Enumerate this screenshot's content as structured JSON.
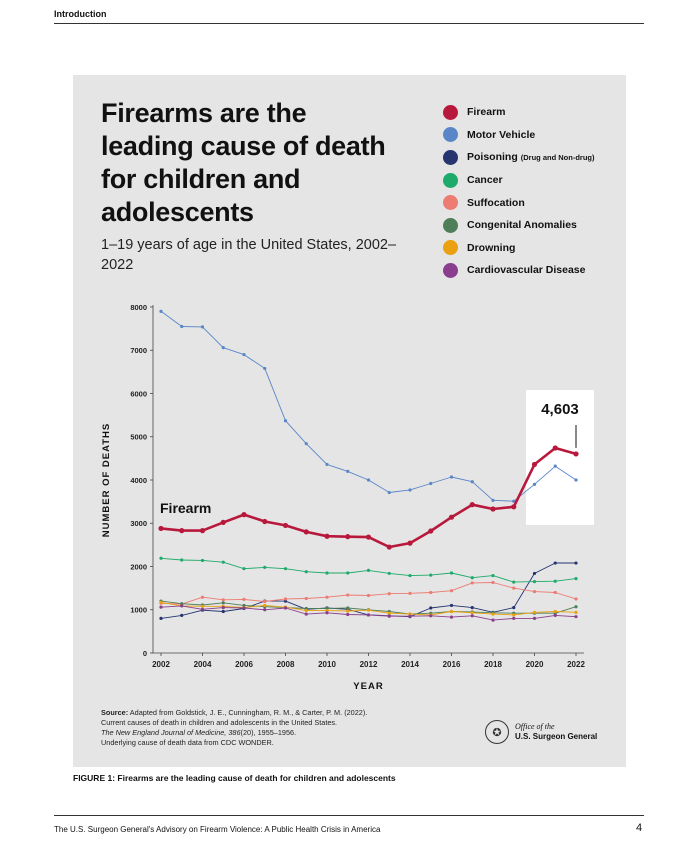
{
  "header": {
    "section": "Introduction"
  },
  "chart_data": {
    "type": "line",
    "title": "Firearms are the leading cause of death for children and adolescents",
    "subtitle": "1–19 years of age in the United States, 2002–2022",
    "xlabel": "YEAR",
    "ylabel": "NUMBER OF DEATHS",
    "x": [
      2002,
      2003,
      2004,
      2005,
      2006,
      2007,
      2008,
      2009,
      2010,
      2011,
      2012,
      2013,
      2014,
      2015,
      2016,
      2017,
      2018,
      2019,
      2020,
      2021,
      2022
    ],
    "xticks": [
      "2002",
      "2004",
      "2006",
      "2008",
      "2010",
      "2012",
      "2014",
      "2016",
      "2018",
      "2020",
      "2022"
    ],
    "yticks": [
      "0",
      "1000",
      "2000",
      "3000",
      "4000",
      "5000",
      "6000",
      "7000",
      "8000"
    ],
    "ylim": [
      0,
      8000
    ],
    "legend_position": "top-right",
    "inline_label": "Firearm",
    "callout_value": "4,603",
    "series": [
      {
        "name": "Firearm",
        "color": "#b8183b",
        "values": [
          2880,
          2830,
          2830,
          3020,
          3200,
          3040,
          2950,
          2800,
          2700,
          2690,
          2680,
          2450,
          2540,
          2820,
          3140,
          3430,
          3330,
          3380,
          4360,
          4740,
          4603
        ]
      },
      {
        "name": "Motor Vehicle",
        "color": "#5a86c8",
        "values": [
          7900,
          7550,
          7540,
          7060,
          6900,
          6580,
          5370,
          4840,
          4360,
          4200,
          4000,
          3710,
          3770,
          3920,
          4070,
          3960,
          3530,
          3510,
          3900,
          4320,
          4000
        ]
      },
      {
        "name": "Poisoning",
        "note": "(Drug and Non-drug)",
        "color": "#263470",
        "values": [
          800,
          870,
          990,
          960,
          1030,
          1200,
          1200,
          1010,
          1040,
          1010,
          880,
          860,
          840,
          1040,
          1100,
          1050,
          940,
          1050,
          1840,
          2080,
          2080
        ]
      },
      {
        "name": "Cancer",
        "color": "#1eaa6a",
        "values": [
          2190,
          2150,
          2140,
          2100,
          1950,
          1980,
          1950,
          1880,
          1850,
          1850,
          1910,
          1840,
          1790,
          1800,
          1850,
          1740,
          1790,
          1640,
          1650,
          1660,
          1720
        ]
      },
      {
        "name": "Suffocation",
        "color": "#ec7b72",
        "values": [
          1150,
          1130,
          1290,
          1230,
          1240,
          1190,
          1250,
          1260,
          1290,
          1340,
          1330,
          1370,
          1380,
          1400,
          1440,
          1620,
          1630,
          1500,
          1420,
          1400,
          1250
        ]
      },
      {
        "name": "Congenital Anomalies",
        "color": "#4f7f58",
        "values": [
          1200,
          1140,
          1110,
          1160,
          1100,
          1070,
          1050,
          1030,
          1030,
          1040,
          1000,
          960,
          900,
          920,
          960,
          950,
          930,
          920,
          920,
          920,
          1070
        ]
      },
      {
        "name": "Drowning",
        "color": "#eaa010",
        "values": [
          1170,
          1090,
          1080,
          1080,
          1050,
          1100,
          1060,
          980,
          980,
          970,
          990,
          920,
          900,
          880,
          960,
          930,
          900,
          880,
          940,
          960,
          940
        ]
      },
      {
        "name": "Cardiovascular Disease",
        "color": "#8a3f8e",
        "values": [
          1060,
          1090,
          1010,
          1050,
          1040,
          1000,
          1040,
          900,
          930,
          890,
          880,
          850,
          850,
          860,
          830,
          860,
          760,
          800,
          800,
          870,
          840
        ]
      }
    ]
  },
  "source": {
    "label": "Source:",
    "line1": "Adapted from Goldstick, J. E., Cunningham, R. M., & Carter, P. M. (2022).",
    "line2": "Current causes of death in children and adolescents in the United States.",
    "journal": "The New England Journal of Medicine, 386",
    "issue": "(20), 1955–1956.",
    "line4": "Underlying cause of death data from CDC WONDER."
  },
  "logo": {
    "line1": "Office of the",
    "line2": "U.S. Surgeon General"
  },
  "caption": "FIGURE 1: Firearms are the leading cause of death for children and adolescents",
  "footer": {
    "text": "The U.S. Surgeon General's Advisory on Firearm Violence: A Public Health Crisis in America",
    "page": "4"
  }
}
